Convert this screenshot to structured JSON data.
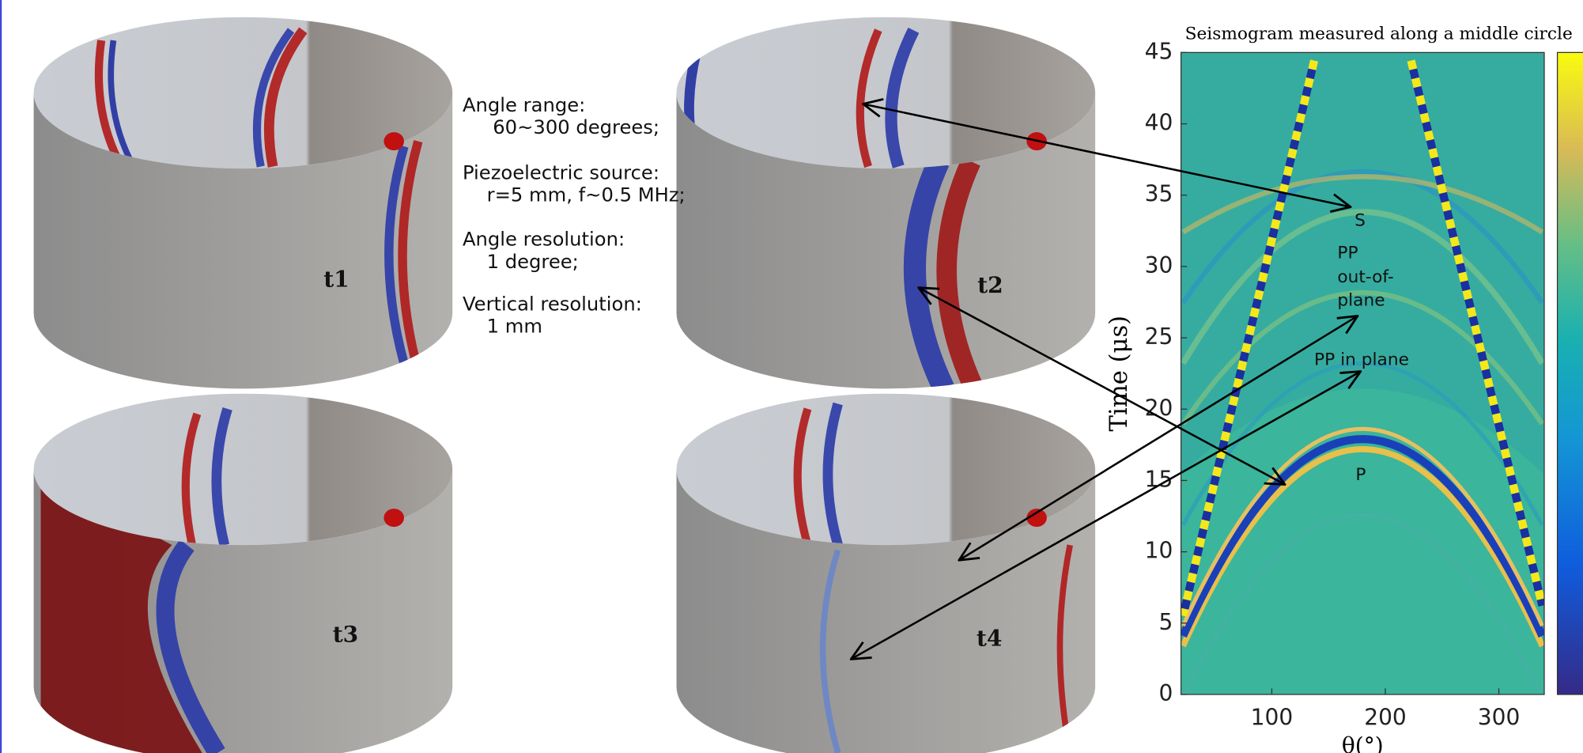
{
  "chart_data": {
    "type": "heatmap",
    "title": "Seismogram measured along a middle circle",
    "x_label": "θ(°)",
    "y_label": "Time (μs)",
    "xlim": [
      20,
      340
    ],
    "xticks": [
      100,
      200,
      300
    ],
    "ylim": [
      0,
      45
    ],
    "yticks": [
      0,
      5,
      10,
      15,
      20,
      25,
      30,
      35,
      40,
      45
    ],
    "colorbar": true
  },
  "annotations": {
    "s": "S",
    "pp_out": [
      "PP",
      "out-of-",
      "plane"
    ],
    "pp_in": "PP in plane",
    "p": "P"
  },
  "panels": [
    "t1",
    "t2",
    "t3",
    "t4"
  ],
  "notes": [
    {
      "heading": "Angle range:",
      "value": "60~300 degrees;"
    },
    {
      "heading": "Piezoelectric source:",
      "value": "r=5 mm, f~0.5 MHz;"
    },
    {
      "heading": "Angle resolution:",
      "value": "1 degree;"
    },
    {
      "heading": "Vertical resolution:",
      "value": "1 mm"
    }
  ]
}
